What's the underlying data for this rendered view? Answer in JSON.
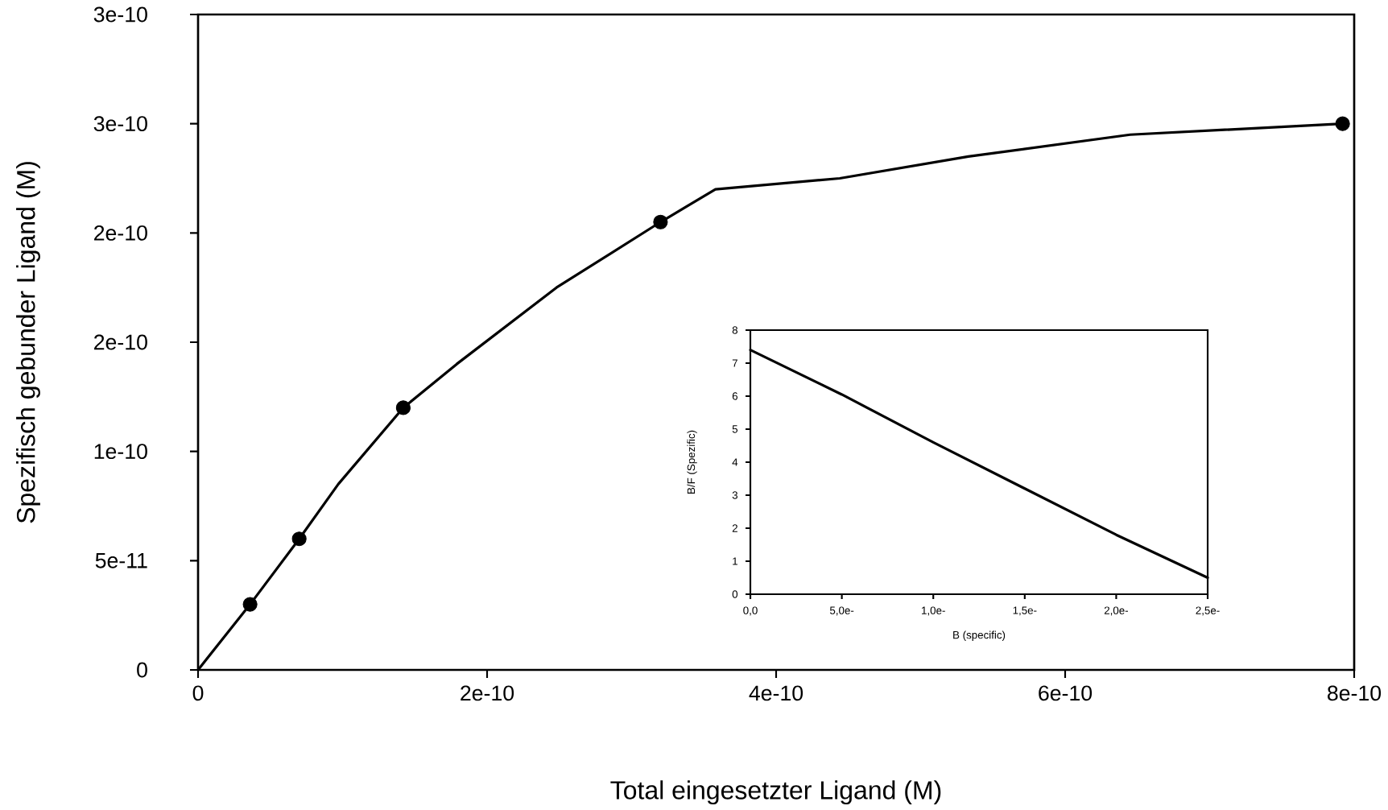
{
  "chart_data": [
    {
      "type": "line",
      "xlabel": "Total eingesetzter Ligand (M)",
      "ylabel": "Spezifisch gebunder Ligand (M)",
      "xlim": [
        0,
        8e-10
      ],
      "ylim": [
        0,
        3e-10
      ],
      "xticks": [
        0,
        2e-10,
        4e-10,
        6e-10,
        8e-10
      ],
      "yticks": [
        0,
        5e-11,
        {
          "value": 1e-10,
          "label": "1e-10"
        },
        {
          "value": 1.5e-10,
          "label": "2e-10"
        },
        {
          "value": 2e-10,
          "label": "2e-10"
        },
        {
          "value": 2.5e-10,
          "label": "3e-10"
        },
        {
          "value": 3e-10,
          "label": "3e-10"
        }
      ],
      "series": [
        {
          "color": "#000000",
          "line_style": "solid",
          "x": [
            0,
            3.6e-11,
            7e-11,
            9.7e-11,
            1.42e-10,
            1.79e-10,
            2.48e-10,
            3.2e-10,
            3.58e-10,
            4.44e-10,
            5.33e-10,
            6.45e-10,
            7.92e-10
          ],
          "values": [
            0,
            3e-11,
            6e-11,
            8.5e-11,
            1.2e-10,
            1.4e-10,
            1.75e-10,
            2.05e-10,
            2.2e-10,
            2.25e-10,
            2.35e-10,
            2.45e-10,
            2.5e-10
          ]
        },
        {
          "type": "scatter",
          "color": "#000000",
          "marker": "circle",
          "x": [
            3.6e-11,
            7e-11,
            1.42e-10,
            3.2e-10,
            7.92e-10
          ],
          "values": [
            3e-11,
            6e-11,
            1.2e-10,
            2.05e-10,
            2.5e-10
          ]
        }
      ]
    },
    {
      "type": "line",
      "xlabel": "B  (specific)",
      "ylabel": "B/F (Spezific)",
      "categories": [
        "0,0",
        "5,0e-",
        "1,0e-",
        "1,5e-",
        "2,0e-",
        "2,5e-"
      ],
      "ylim": [
        0,
        8
      ],
      "yticks": [
        0,
        1,
        2,
        3,
        4,
        5,
        6,
        7,
        8
      ],
      "series": [
        {
          "color": "#000000",
          "line_style": "solid",
          "values": [
            7.4,
            6.05,
            4.6,
            3.2,
            1.8,
            0.5
          ]
        }
      ]
    }
  ]
}
